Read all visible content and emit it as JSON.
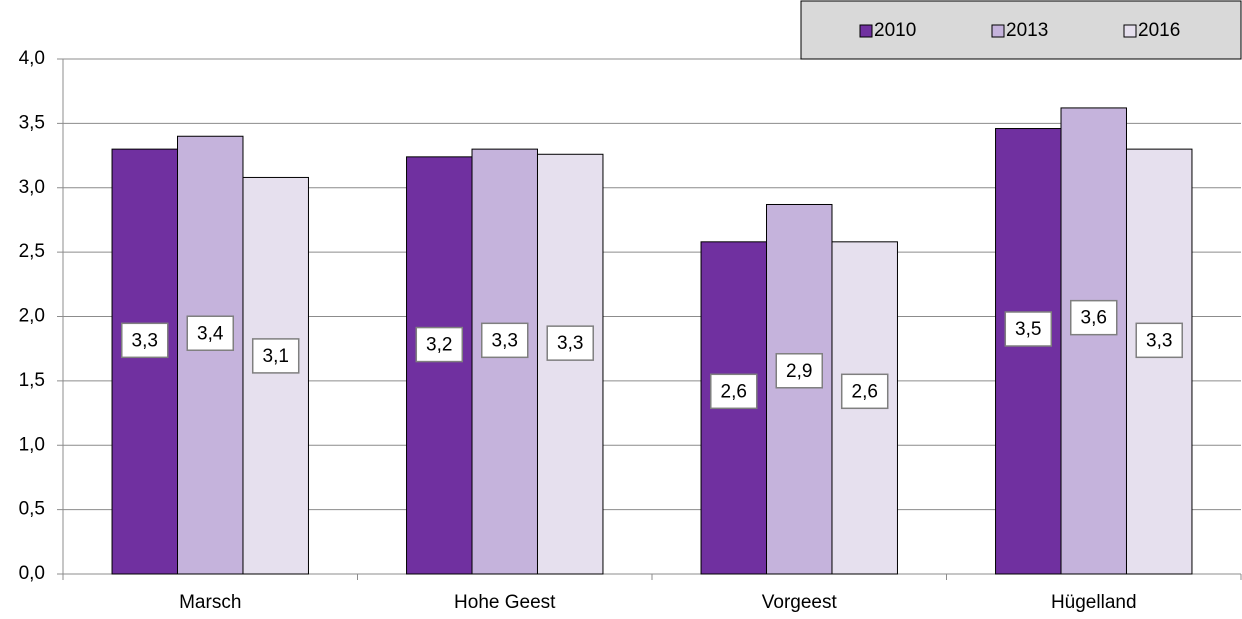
{
  "chart_data": {
    "type": "bar",
    "categories": [
      "Marsch",
      "Hohe Geest",
      "Vorgeest",
      "Hügelland"
    ],
    "series": [
      {
        "name": "2010",
        "color": "#7030a0",
        "values": [
          3.3,
          3.24,
          2.58,
          3.46
        ],
        "value_labels": [
          "3,3",
          "3,2",
          "2,6",
          "3,5"
        ]
      },
      {
        "name": "2013",
        "color": "#c5b3dc",
        "values": [
          3.4,
          3.3,
          2.87,
          3.62
        ],
        "value_labels": [
          "3,4",
          "3,3",
          "2,9",
          "3,6"
        ]
      },
      {
        "name": "2016",
        "color": "#e6e0ee",
        "values": [
          3.08,
          3.26,
          2.58,
          3.3
        ],
        "value_labels": [
          "3,1",
          "3,3",
          "2,6",
          "3,3"
        ]
      }
    ],
    "ylim": [
      0,
      4
    ],
    "yticks": [
      {
        "value": 0,
        "label": "0,0"
      },
      {
        "value": 0.5,
        "label": "0,5"
      },
      {
        "value": 1,
        "label": "1,0"
      },
      {
        "value": 1.5,
        "label": "1,5"
      },
      {
        "value": 2,
        "label": "2,0"
      },
      {
        "value": 2.5,
        "label": "2,5"
      },
      {
        "value": 3,
        "label": "3,0"
      },
      {
        "value": 3.5,
        "label": "3,5"
      },
      {
        "value": 4,
        "label": "4,0"
      }
    ],
    "grid": true,
    "legend": "top-right"
  }
}
